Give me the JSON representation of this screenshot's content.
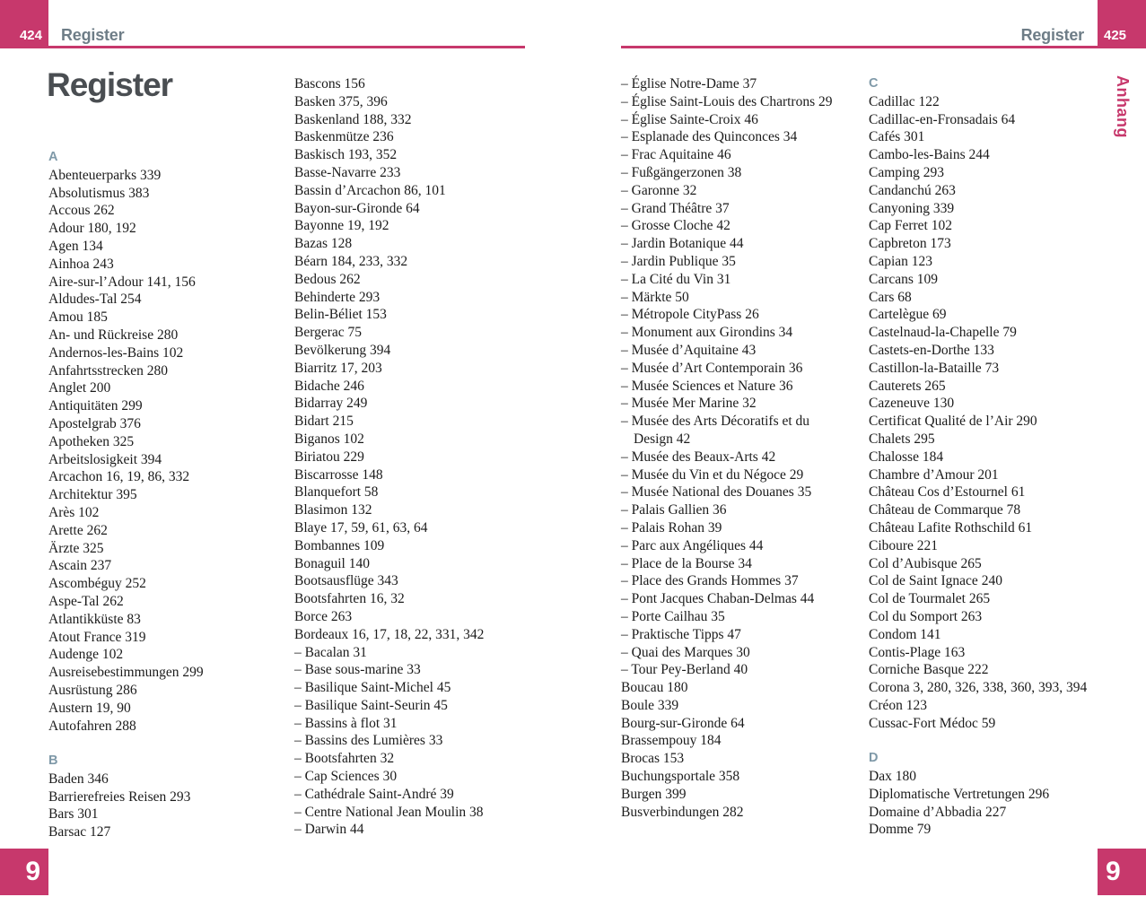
{
  "page_left": {
    "page_number": "424",
    "header_title": "Register",
    "title": "Register",
    "chapter_number": "9"
  },
  "page_right": {
    "page_number": "425",
    "header_title": "Register",
    "side_tab": "Anhang",
    "chapter_number": "9"
  },
  "colors": {
    "accent_pink": "#c7386c",
    "header_gray": "#6e7d87",
    "title_gray": "#4a4e52",
    "section_letter_gray_blue": "#7f99a8",
    "body_text": "#1b1b1b"
  },
  "index_columns": [
    {
      "name": "left-page-column-1",
      "lines": [
        {
          "type": "letter",
          "text": "A"
        },
        {
          "type": "entry",
          "text": "Abenteuerparks 339"
        },
        {
          "type": "entry",
          "text": "Absolutismus 383"
        },
        {
          "type": "entry",
          "text": "Accous 262"
        },
        {
          "type": "entry",
          "text": "Adour 180, 192"
        },
        {
          "type": "entry",
          "text": "Agen 134"
        },
        {
          "type": "entry",
          "text": "Ainhoa 243"
        },
        {
          "type": "entry",
          "text": "Aire-sur-l’Adour 141, 156"
        },
        {
          "type": "entry",
          "text": "Aldudes-Tal 254"
        },
        {
          "type": "entry",
          "text": "Amou 185"
        },
        {
          "type": "entry",
          "text": "An- und Rückreise 280"
        },
        {
          "type": "entry",
          "text": "Andernos-les-Bains 102"
        },
        {
          "type": "entry",
          "text": "Anfahrtsstrecken 280"
        },
        {
          "type": "entry",
          "text": "Anglet 200"
        },
        {
          "type": "entry",
          "text": "Antiquitäten 299"
        },
        {
          "type": "entry",
          "text": "Apostelgrab 376"
        },
        {
          "type": "entry",
          "text": "Apotheken 325"
        },
        {
          "type": "entry",
          "text": "Arbeitslosigkeit 394"
        },
        {
          "type": "entry",
          "text": "Arcachon 16, 19, 86, 332"
        },
        {
          "type": "entry",
          "text": "Architektur 395"
        },
        {
          "type": "entry",
          "text": "Arès 102"
        },
        {
          "type": "entry",
          "text": "Arette 262"
        },
        {
          "type": "entry",
          "text": "Ärzte 325"
        },
        {
          "type": "entry",
          "text": "Ascain 237"
        },
        {
          "type": "entry",
          "text": "Ascombéguy 252"
        },
        {
          "type": "entry",
          "text": "Aspe-Tal 262"
        },
        {
          "type": "entry",
          "text": "Atlantikküste 83"
        },
        {
          "type": "entry",
          "text": "Atout France 319"
        },
        {
          "type": "entry",
          "text": "Audenge 102"
        },
        {
          "type": "entry",
          "text": "Ausreisebestimmungen 299"
        },
        {
          "type": "entry",
          "text": "Ausrüstung 286"
        },
        {
          "type": "entry",
          "text": "Austern 19, 90"
        },
        {
          "type": "entry",
          "text": "Autofahren 288"
        },
        {
          "type": "gap",
          "text": ""
        },
        {
          "type": "letter",
          "text": "B"
        },
        {
          "type": "entry",
          "text": "Baden 346"
        },
        {
          "type": "entry",
          "text": "Barrierefreies Reisen 293"
        },
        {
          "type": "entry",
          "text": "Bars 301"
        },
        {
          "type": "entry",
          "text": "Barsac 127"
        }
      ]
    },
    {
      "name": "left-page-column-2",
      "lines": [
        {
          "type": "entry",
          "text": "Bascons 156"
        },
        {
          "type": "entry",
          "text": "Basken 375, 396"
        },
        {
          "type": "entry",
          "text": "Baskenland 188, 332"
        },
        {
          "type": "entry",
          "text": "Baskenmütze 236"
        },
        {
          "type": "entry",
          "text": "Baskisch 193, 352"
        },
        {
          "type": "entry",
          "text": "Basse-Navarre 233"
        },
        {
          "type": "entry",
          "text": "Bassin d’Arcachon 86, 101"
        },
        {
          "type": "entry",
          "text": "Bayon-sur-Gironde 64"
        },
        {
          "type": "entry",
          "text": "Bayonne 19, 192"
        },
        {
          "type": "entry",
          "text": "Bazas 128"
        },
        {
          "type": "entry",
          "text": "Béarn 184, 233, 332"
        },
        {
          "type": "entry",
          "text": "Bedous 262"
        },
        {
          "type": "entry",
          "text": "Behinderte 293"
        },
        {
          "type": "entry",
          "text": "Belin-Béliet 153"
        },
        {
          "type": "entry",
          "text": "Bergerac 75"
        },
        {
          "type": "entry",
          "text": "Bevölkerung 394"
        },
        {
          "type": "entry",
          "text": "Biarritz 17, 203"
        },
        {
          "type": "entry",
          "text": "Bidache 246"
        },
        {
          "type": "entry",
          "text": "Bidarray 249"
        },
        {
          "type": "entry",
          "text": "Bidart 215"
        },
        {
          "type": "entry",
          "text": "Biganos 102"
        },
        {
          "type": "entry",
          "text": "Biriatou 229"
        },
        {
          "type": "entry",
          "text": "Biscarrosse 148"
        },
        {
          "type": "entry",
          "text": "Blanquefort 58"
        },
        {
          "type": "entry",
          "text": "Blasimon 132"
        },
        {
          "type": "entry",
          "text": "Blaye 17, 59, 61, 63, 64"
        },
        {
          "type": "entry",
          "text": "Bombannes 109"
        },
        {
          "type": "entry",
          "text": "Bonaguil 140"
        },
        {
          "type": "entry",
          "text": "Bootsausflüge 343"
        },
        {
          "type": "entry",
          "text": "Bootsfahrten 16, 32"
        },
        {
          "type": "entry",
          "text": "Borce 263"
        },
        {
          "type": "entry",
          "text": "Bordeaux 16, 17, 18, 22, 331, 342"
        },
        {
          "type": "sub",
          "text": "– Bacalan 31"
        },
        {
          "type": "sub",
          "text": "– Base sous-marine 33"
        },
        {
          "type": "sub",
          "text": "– Basilique Saint-Michel 45"
        },
        {
          "type": "sub",
          "text": "– Basilique Saint-Seurin 45"
        },
        {
          "type": "sub",
          "text": "– Bassins à flot 31"
        },
        {
          "type": "sub",
          "text": "– Bassins des Lumières 33"
        },
        {
          "type": "sub",
          "text": "– Bootsfahrten 32"
        },
        {
          "type": "sub",
          "text": "– Cap Sciences 30"
        },
        {
          "type": "sub",
          "text": "– Cathédrale Saint-André 39"
        },
        {
          "type": "sub",
          "text": "– Centre National Jean Moulin 38"
        },
        {
          "type": "sub",
          "text": "– Darwin 44"
        }
      ]
    },
    {
      "name": "right-page-column-1",
      "lines": [
        {
          "type": "sub",
          "text": "– Église Notre-Dame 37"
        },
        {
          "type": "sub",
          "text": "– Église Saint-Louis des Chartrons 29"
        },
        {
          "type": "sub",
          "text": "– Église Sainte-Croix 46"
        },
        {
          "type": "sub",
          "text": "– Esplanade des Quinconces 34"
        },
        {
          "type": "sub",
          "text": "– Frac Aquitaine 46"
        },
        {
          "type": "sub",
          "text": "– Fußgängerzonen 38"
        },
        {
          "type": "sub",
          "text": "– Garonne 32"
        },
        {
          "type": "sub",
          "text": "– Grand Théâtre 37"
        },
        {
          "type": "sub",
          "text": "– Grosse Cloche 42"
        },
        {
          "type": "sub",
          "text": "– Jardin Botanique 44"
        },
        {
          "type": "sub",
          "text": "– Jardin Publique 35"
        },
        {
          "type": "sub",
          "text": "– La Cité du Vin 31"
        },
        {
          "type": "sub",
          "text": "– Märkte 50"
        },
        {
          "type": "sub",
          "text": "– Métropole CityPass 26"
        },
        {
          "type": "sub",
          "text": "– Monument aux Girondins 34"
        },
        {
          "type": "sub",
          "text": "– Musée d’Aquitaine 43"
        },
        {
          "type": "sub",
          "text": "– Musée d’Art Contemporain 36"
        },
        {
          "type": "sub",
          "text": "– Musée Sciences et Nature 36"
        },
        {
          "type": "sub",
          "text": "– Musée Mer Marine 32"
        },
        {
          "type": "sub",
          "text": "– Musée des Arts Décoratifs et du"
        },
        {
          "type": "cont",
          "text": "Design 42"
        },
        {
          "type": "sub",
          "text": "– Musée des Beaux-Arts 42"
        },
        {
          "type": "sub",
          "text": "– Musée du Vin et du Négoce 29"
        },
        {
          "type": "sub",
          "text": "– Musée National des Douanes 35"
        },
        {
          "type": "sub",
          "text": "– Palais Gallien 36"
        },
        {
          "type": "sub",
          "text": "– Palais Rohan 39"
        },
        {
          "type": "sub",
          "text": "– Parc aux Angéliques 44"
        },
        {
          "type": "sub",
          "text": "– Place de la Bourse 34"
        },
        {
          "type": "sub",
          "text": "– Place des Grands Hommes 37"
        },
        {
          "type": "sub",
          "text": "– Pont Jacques Chaban-Delmas 44"
        },
        {
          "type": "sub",
          "text": "– Porte Cailhau 35"
        },
        {
          "type": "sub",
          "text": "– Praktische Tipps 47"
        },
        {
          "type": "sub",
          "text": "– Quai des Marques 30"
        },
        {
          "type": "sub",
          "text": "– Tour Pey-Berland 40"
        },
        {
          "type": "entry",
          "text": "Boucau 180"
        },
        {
          "type": "entry",
          "text": "Boule 339"
        },
        {
          "type": "entry",
          "text": "Bourg-sur-Gironde 64"
        },
        {
          "type": "entry",
          "text": "Brassempouy 184"
        },
        {
          "type": "entry",
          "text": "Brocas 153"
        },
        {
          "type": "entry",
          "text": "Buchungsportale 358"
        },
        {
          "type": "entry",
          "text": "Burgen 399"
        },
        {
          "type": "entry",
          "text": "Busverbindungen 282"
        }
      ]
    },
    {
      "name": "right-page-column-2",
      "lines": [
        {
          "type": "letter",
          "text": "C"
        },
        {
          "type": "entry",
          "text": "Cadillac 122"
        },
        {
          "type": "entry",
          "text": "Cadillac-en-Fronsadais 64"
        },
        {
          "type": "entry",
          "text": "Cafés 301"
        },
        {
          "type": "entry",
          "text": "Cambo-les-Bains 244"
        },
        {
          "type": "entry",
          "text": "Camping 293"
        },
        {
          "type": "entry",
          "text": "Candanchú 263"
        },
        {
          "type": "entry",
          "text": "Canyoning 339"
        },
        {
          "type": "entry",
          "text": "Cap Ferret 102"
        },
        {
          "type": "entry",
          "text": "Capbreton 173"
        },
        {
          "type": "entry",
          "text": "Capian 123"
        },
        {
          "type": "entry",
          "text": "Carcans 109"
        },
        {
          "type": "entry",
          "text": "Cars 68"
        },
        {
          "type": "entry",
          "text": "Cartelègue 69"
        },
        {
          "type": "entry",
          "text": "Castelnaud-la-Chapelle 79"
        },
        {
          "type": "entry",
          "text": "Castets-en-Dorthe 133"
        },
        {
          "type": "entry",
          "text": "Castillon-la-Bataille 73"
        },
        {
          "type": "entry",
          "text": "Cauterets 265"
        },
        {
          "type": "entry",
          "text": "Cazeneuve 130"
        },
        {
          "type": "entry",
          "text": "Certificat Qualité de l’Air 290"
        },
        {
          "type": "entry",
          "text": "Chalets 295"
        },
        {
          "type": "entry",
          "text": "Chalosse 184"
        },
        {
          "type": "entry",
          "text": "Chambre d’Amour 201"
        },
        {
          "type": "entry",
          "text": "Château Cos d’Estournel 61"
        },
        {
          "type": "entry",
          "text": "Château de Commarque 78"
        },
        {
          "type": "entry",
          "text": "Château Lafite Rothschild 61"
        },
        {
          "type": "entry",
          "text": "Ciboure 221"
        },
        {
          "type": "entry",
          "text": "Col d’Aubisque 265"
        },
        {
          "type": "entry",
          "text": "Col de Saint Ignace 240"
        },
        {
          "type": "entry",
          "text": "Col de Tourmalet 265"
        },
        {
          "type": "entry",
          "text": "Col du Somport 263"
        },
        {
          "type": "entry",
          "text": "Condom 141"
        },
        {
          "type": "entry",
          "text": "Contis-Plage 163"
        },
        {
          "type": "entry",
          "text": "Corniche Basque 222"
        },
        {
          "type": "entry",
          "text": "Corona 3, 280, 326, 338, 360, 393, 394"
        },
        {
          "type": "entry",
          "text": "Créon 123"
        },
        {
          "type": "entry",
          "text": "Cussac-Fort Médoc 59"
        },
        {
          "type": "gap",
          "text": ""
        },
        {
          "type": "letter",
          "text": "D"
        },
        {
          "type": "entry",
          "text": "Dax 180"
        },
        {
          "type": "entry",
          "text": "Diplomatische Vertretungen 296"
        },
        {
          "type": "entry",
          "text": "Domaine d’Abbadia 227"
        },
        {
          "type": "entry",
          "text": "Domme 79"
        }
      ]
    }
  ]
}
